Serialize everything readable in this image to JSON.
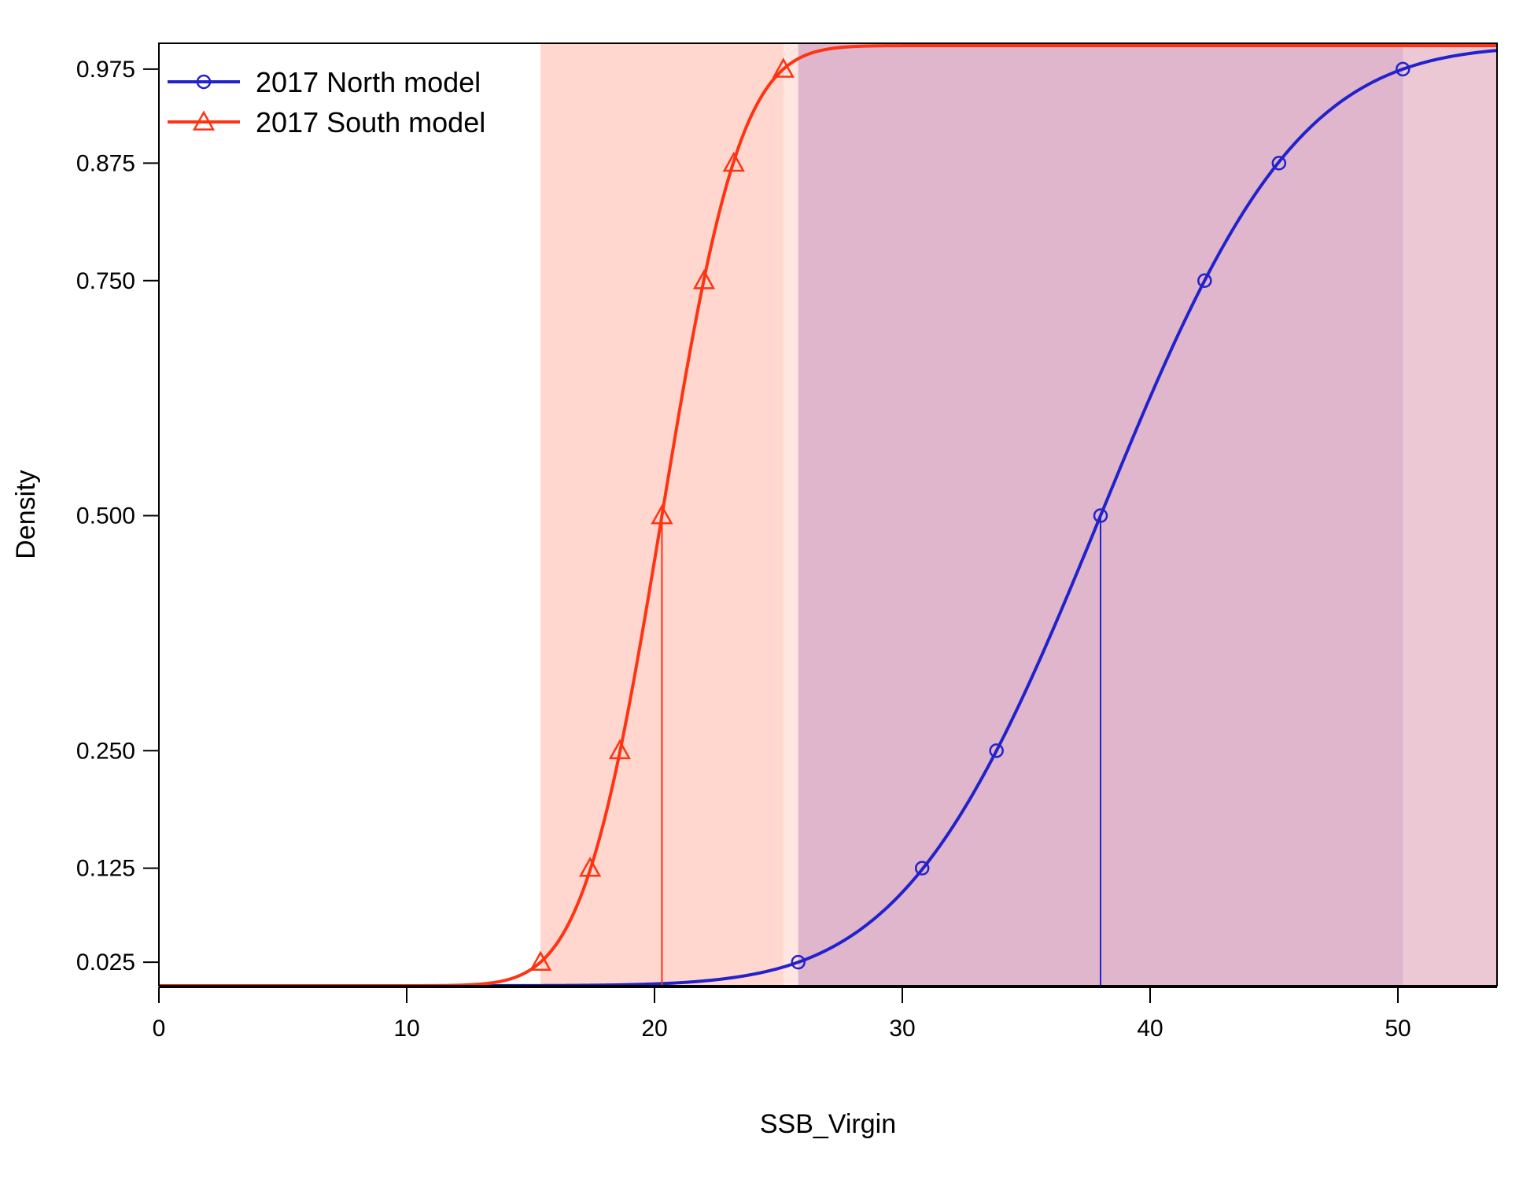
{
  "chart_data": {
    "type": "line",
    "title": "",
    "xlabel": "SSB_Virgin",
    "ylabel": "Density",
    "xlim": [
      0,
      54
    ],
    "ylim": [
      0,
      1
    ],
    "x_ticks": [
      0,
      10,
      20,
      30,
      40,
      50
    ],
    "x_tick_labels": [
      "0",
      "10",
      "20",
      "30",
      "40",
      "50"
    ],
    "y_ticks": [
      0.025,
      0.125,
      0.25,
      0.5,
      0.75,
      0.875,
      0.975
    ],
    "y_tick_labels": [
      "0.025",
      "0.125",
      "0.250",
      "0.500",
      "0.750",
      "0.875",
      "0.975"
    ],
    "grid": false,
    "legend_position": "top-left",
    "series": [
      {
        "name": "2017 North model",
        "color": "#2222cc",
        "marker": "circle",
        "shade_color": "#b070b0",
        "median": 38.0,
        "x_025": 25.8,
        "x_975": 50.2,
        "quantile_points": [
          {
            "x": 25.8,
            "y": 0.025
          },
          {
            "x": 30.8,
            "y": 0.125
          },
          {
            "x": 33.8,
            "y": 0.25
          },
          {
            "x": 38.0,
            "y": 0.5
          },
          {
            "x": 42.2,
            "y": 0.75
          },
          {
            "x": 45.2,
            "y": 0.875
          },
          {
            "x": 50.2,
            "y": 0.975
          }
        ]
      },
      {
        "name": "2017 South model",
        "color": "#ff3311",
        "marker": "triangle",
        "shade_color": "#ff9b85",
        "median": 20.3,
        "x_025": 15.4,
        "x_975": 25.2,
        "quantile_points": [
          {
            "x": 15.4,
            "y": 0.025
          },
          {
            "x": 17.4,
            "y": 0.125
          },
          {
            "x": 18.6,
            "y": 0.25
          },
          {
            "x": 20.3,
            "y": 0.5
          },
          {
            "x": 22.0,
            "y": 0.75
          },
          {
            "x": 23.2,
            "y": 0.875
          },
          {
            "x": 25.2,
            "y": 0.975
          }
        ]
      }
    ]
  }
}
